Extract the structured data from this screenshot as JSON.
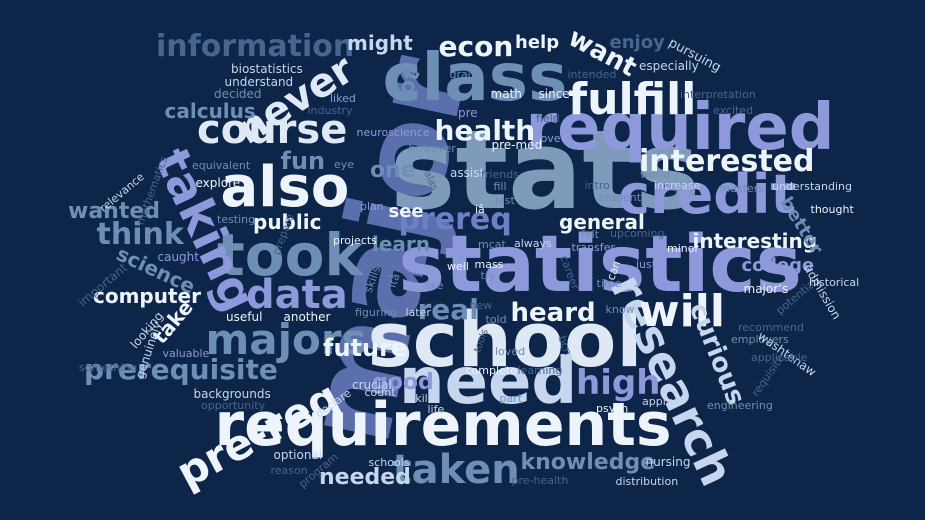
{
  "palette": {
    "background": "#0c2549",
    "white": "#eef4fb",
    "pale": "#c6d6ee",
    "lavender": "#8e99dc",
    "steel": "#6e8fb5",
    "slate": "#47658f",
    "dim": "#34507a"
  },
  "words": [
    {
      "text": "major",
      "color": "#5c6fad"
    },
    {
      "text": "stats",
      "color": "#7f9bbb"
    },
    {
      "text": "statistics",
      "color": "#8e99dc"
    },
    {
      "text": "school",
      "color": "#dfe8f5"
    },
    {
      "text": "requirements",
      "color": "#eef4fb"
    },
    {
      "text": "need",
      "color": "#c6d6ee"
    },
    {
      "text": "class",
      "color": "#6e8fb5"
    },
    {
      "text": "required",
      "color": "#8e99dc"
    },
    {
      "text": "took",
      "color": "#6e8fb5"
    },
    {
      "text": "also",
      "color": "#eef4fb"
    },
    {
      "text": "taking",
      "color": "#8e99dc"
    },
    {
      "text": "course",
      "color": "#dfe8f5"
    },
    {
      "text": "credit",
      "color": "#8e99dc"
    },
    {
      "text": "research",
      "color": "#c6d6ee"
    },
    {
      "text": "pre-req",
      "color": "#eef4fb"
    },
    {
      "text": "majors",
      "color": "#6e8fb5"
    },
    {
      "text": "data",
      "color": "#8e99dc"
    },
    {
      "text": "never",
      "color": "#dfe8f5"
    },
    {
      "text": "fulfill",
      "color": "#eef4fb"
    },
    {
      "text": "taken",
      "color": "#6e8fb5"
    },
    {
      "text": "will",
      "color": "#eef4fb"
    },
    {
      "text": "information",
      "color": "#47658f"
    },
    {
      "text": "prerequisite",
      "color": "#6e8fb5"
    },
    {
      "text": "high",
      "color": "#8e99dc"
    },
    {
      "text": "interested",
      "color": "#eef4fb"
    },
    {
      "text": "health",
      "color": "#eef4fb"
    },
    {
      "text": "econ",
      "color": "#eef4fb"
    },
    {
      "text": "want",
      "color": "#eef4fb"
    },
    {
      "text": "curious",
      "color": "#c6d6ee"
    },
    {
      "text": "prereq",
      "color": "#6e7fc6"
    },
    {
      "text": "think",
      "color": "#6e8fb5"
    },
    {
      "text": "heard",
      "color": "#eef4fb"
    },
    {
      "text": "real",
      "color": "#6e8fb5"
    },
    {
      "text": "future",
      "color": "#eef4fb"
    },
    {
      "text": "knowledge",
      "color": "#6e8fb5"
    },
    {
      "text": "needed",
      "color": "#c6d6ee"
    },
    {
      "text": "computer",
      "color": "#eef4fb"
    },
    {
      "text": "interesting",
      "color": "#eef4fb"
    },
    {
      "text": "college",
      "color": "#8e99dc"
    },
    {
      "text": "good",
      "color": "#8e99dc"
    },
    {
      "text": "general",
      "color": "#eef4fb"
    },
    {
      "text": "better",
      "color": "#6e8fb5"
    },
    {
      "text": "wanted",
      "color": "#6e8fb5"
    },
    {
      "text": "fun",
      "color": "#6e8fb5"
    },
    {
      "text": "public",
      "color": "#eef4fb"
    },
    {
      "text": "see",
      "color": "#eef4fb"
    },
    {
      "text": "learn",
      "color": "#6e8fb5"
    },
    {
      "text": "one",
      "color": "#6e8fb5"
    },
    {
      "text": "lot",
      "color": "#6e8fb5"
    },
    {
      "text": "calculus",
      "color": "#6e8fb5"
    },
    {
      "text": "science",
      "color": "#6e8fb5"
    },
    {
      "text": "take",
      "color": "#eef4fb"
    },
    {
      "text": "might",
      "color": "#c6d6ee"
    },
    {
      "text": "help",
      "color": "#eef4fb"
    },
    {
      "text": "enjoy",
      "color": "#47658f"
    },
    {
      "text": "pursuing",
      "color": "#c6d6ee"
    },
    {
      "text": "especially",
      "color": "#c6d6ee"
    },
    {
      "text": "biostatistics",
      "color": "#c6d6ee"
    },
    {
      "text": "understand",
      "color": "#c6d6ee"
    },
    {
      "text": "decided",
      "color": "#6e8fb5"
    },
    {
      "text": "liked",
      "color": "#8e99dc"
    },
    {
      "text": "industry",
      "color": "#47658f"
    },
    {
      "text": "grad",
      "color": "#6e8fb5"
    },
    {
      "text": "math",
      "color": "#eef4fb"
    },
    {
      "text": "since",
      "color": "#eef4fb"
    },
    {
      "text": "intended",
      "color": "#47658f"
    },
    {
      "text": "interpretation",
      "color": "#47658f"
    },
    {
      "text": "pre",
      "color": "#8e99dc"
    },
    {
      "text": "field",
      "color": "#47658f"
    },
    {
      "text": "excited",
      "color": "#47658f"
    },
    {
      "text": "neuroscience",
      "color": "#8e99dc"
    },
    {
      "text": "love",
      "color": "#8e99dc"
    },
    {
      "text": "however",
      "color": "#6e8fb5"
    },
    {
      "text": "pre-med",
      "color": "#eef4fb"
    },
    {
      "text": "equivalent",
      "color": "#6e8fb5"
    },
    {
      "text": "eye",
      "color": "#6e8fb5"
    },
    {
      "text": "assist",
      "color": "#c6d6ee"
    },
    {
      "text": "friends",
      "color": "#47658f"
    },
    {
      "text": "world",
      "color": "#6e8fb5"
    },
    {
      "text": "increase",
      "color": "#c6d6ee"
    },
    {
      "text": "masters",
      "color": "#6e8fb5"
    },
    {
      "text": "understanding",
      "color": "#c6d6ee"
    },
    {
      "text": "explore",
      "color": "#eef4fb"
    },
    {
      "text": "alas",
      "color": "#47658f"
    },
    {
      "text": "fill",
      "color": "#6e8fb5"
    },
    {
      "text": "last",
      "color": "#6e8fb5"
    },
    {
      "text": "intro",
      "color": "#47658f"
    },
    {
      "text": "student",
      "color": "#6e8fb5"
    },
    {
      "text": "relevance",
      "color": "#c6d6ee"
    },
    {
      "text": "mathematics",
      "color": "#47658f"
    },
    {
      "text": "testing",
      "color": "#6e8fb5"
    },
    {
      "text": "plan",
      "color": "#8e99dc"
    },
    {
      "text": "prepare",
      "color": "#47658f"
    },
    {
      "text": "projects",
      "color": "#eef4fb"
    },
    {
      "text": "felt",
      "color": "#6e8fb5"
    },
    {
      "text": "upcoming",
      "color": "#47658f"
    },
    {
      "text": "transfer",
      "color": "#8e99dc"
    },
    {
      "text": "thought",
      "color": "#eef4fb"
    },
    {
      "text": "minor",
      "color": "#eef4fb"
    },
    {
      "text": "always",
      "color": "#c6d6ee"
    },
    {
      "text": "mcat",
      "color": "#6e8fb5"
    },
    {
      "text": "mass",
      "color": "#eef4fb"
    },
    {
      "text": "caught",
      "color": "#8e99dc"
    },
    {
      "text": "important",
      "color": "#47658f"
    },
    {
      "text": "skills",
      "color": "#6e8fb5"
    },
    {
      "text": "itâ",
      "color": "#6e8fb5"
    },
    {
      "text": "iâ",
      "color": "#eef4fb"
    },
    {
      "text": "well",
      "color": "#eef4fb"
    },
    {
      "text": "try",
      "color": "#6e8fb5"
    },
    {
      "text": "like",
      "color": "#6e8fb5"
    },
    {
      "text": "career",
      "color": "#47658f"
    },
    {
      "text": "time",
      "color": "#6e8fb5"
    },
    {
      "text": "can",
      "color": "#eef4fb"
    },
    {
      "text": "just",
      "color": "#8e99dc"
    },
    {
      "text": "major’s",
      "color": "#eef4fb"
    },
    {
      "text": "admission",
      "color": "#c6d6ee"
    },
    {
      "text": "potential",
      "color": "#47658f"
    },
    {
      "text": "historical",
      "color": "#c6d6ee"
    },
    {
      "text": "another",
      "color": "#eef4fb"
    },
    {
      "text": "useful",
      "color": "#eef4fb"
    },
    {
      "text": "looking",
      "color": "#c6d6ee"
    },
    {
      "text": "genuinely",
      "color": "#c6d6ee"
    },
    {
      "text": "valuable",
      "color": "#8e99dc"
    },
    {
      "text": "something",
      "color": "#47658f"
    },
    {
      "text": "new",
      "color": "#47658f"
    },
    {
      "text": "figuring",
      "color": "#6e8fb5"
    },
    {
      "text": "later",
      "color": "#c6d6ee"
    },
    {
      "text": "know",
      "color": "#6e8fb5"
    },
    {
      "text": "told",
      "color": "#6e8fb5"
    },
    {
      "text": "tools",
      "color": "#47658f"
    },
    {
      "text": "loved",
      "color": "#6e8fb5"
    },
    {
      "text": "bcn",
      "color": "#47658f"
    },
    {
      "text": "recommend",
      "color": "#47658f"
    },
    {
      "text": "employers",
      "color": "#6e8fb5"
    },
    {
      "text": "washtenaw",
      "color": "#c6d6ee"
    },
    {
      "text": "applicable",
      "color": "#47658f"
    },
    {
      "text": "requisite",
      "color": "#47658f"
    },
    {
      "text": "engineering",
      "color": "#6e8fb5"
    },
    {
      "text": "learning",
      "color": "#47658f"
    },
    {
      "text": "complete",
      "color": "#eef4fb"
    },
    {
      "text": "crucial",
      "color": "#c6d6ee"
    },
    {
      "text": "count",
      "color": "#c6d6ee"
    },
    {
      "text": "skill",
      "color": "#c6d6ee"
    },
    {
      "text": "part",
      "color": "#6e8fb5"
    },
    {
      "text": "declare",
      "color": "#c6d6ee"
    },
    {
      "text": "life",
      "color": "#c6d6ee"
    },
    {
      "text": "psych",
      "color": "#eef4fb"
    },
    {
      "text": "apply",
      "color": "#c6d6ee"
    },
    {
      "text": "backgrounds",
      "color": "#c6d6ee"
    },
    {
      "text": "opportunity",
      "color": "#47658f"
    },
    {
      "text": "optional",
      "color": "#c6d6ee"
    },
    {
      "text": "reason",
      "color": "#47658f"
    },
    {
      "text": "program",
      "color": "#47658f"
    },
    {
      "text": "schools",
      "color": "#c6d6ee"
    },
    {
      "text": "pre-health",
      "color": "#47658f"
    },
    {
      "text": "nursing",
      "color": "#c6d6ee"
    },
    {
      "text": "distribution",
      "color": "#c6d6ee"
    }
  ]
}
